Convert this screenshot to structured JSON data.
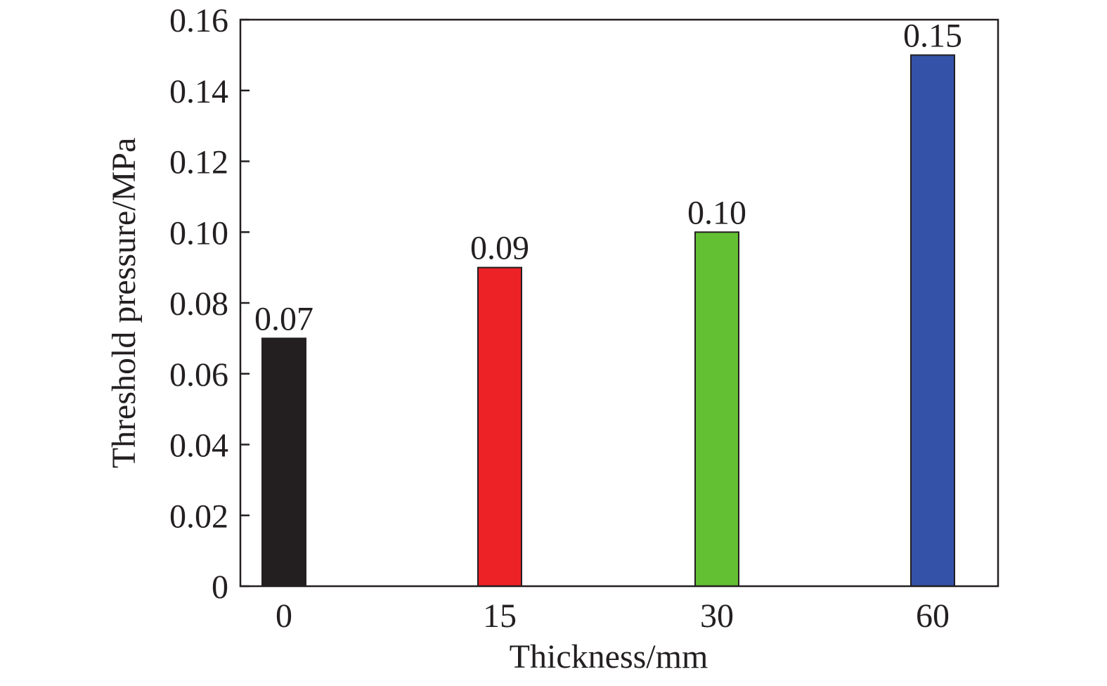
{
  "chart_data": {
    "type": "bar",
    "title": "",
    "xlabel": "Thickness/mm",
    "ylabel": "Threshold pressure/MPa",
    "categories": [
      "0",
      "15",
      "30",
      "60"
    ],
    "values": [
      0.07,
      0.09,
      0.1,
      0.15
    ],
    "data_labels": [
      "0.07",
      "0.09",
      "0.10",
      "0.15"
    ],
    "bar_colors": [
      "#231f20",
      "#ed2227",
      "#63c032",
      "#3452a7"
    ],
    "ylim": [
      0,
      0.16
    ],
    "y_ticks": [
      0,
      0.02,
      0.04,
      0.06,
      0.08,
      0.1,
      0.12,
      0.14,
      0.16
    ],
    "y_tick_labels": [
      "0",
      "0.02",
      "0.04",
      "0.06",
      "0.08",
      "0.10",
      "0.12",
      "0.14",
      "0.16"
    ],
    "grid": false,
    "legend": "none"
  }
}
